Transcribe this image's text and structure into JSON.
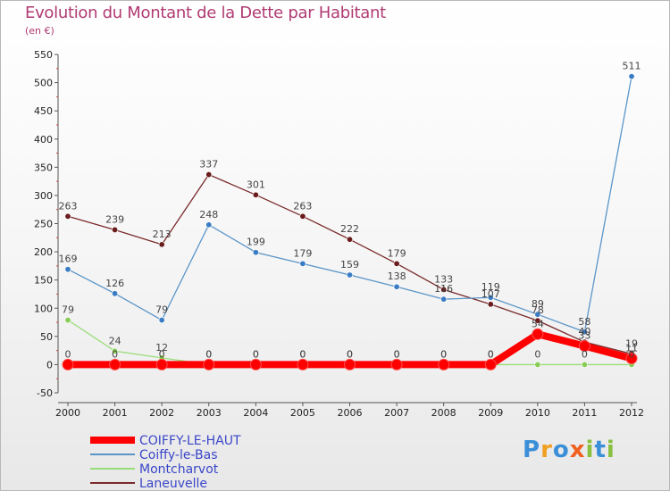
{
  "header": {
    "title": "Evolution du Montant de la Dette par Habitant",
    "unit": "(en €)"
  },
  "logo": {
    "text": "Proxiti"
  },
  "chart_data": {
    "type": "line",
    "title": "Evolution du Montant de la Dette par Habitant",
    "ylabel": "(en €)",
    "ylim": [
      -50,
      550
    ],
    "yticks": [
      -50,
      0,
      50,
      100,
      150,
      200,
      250,
      300,
      350,
      400,
      450,
      500,
      550
    ],
    "x": [
      "2000",
      "2001",
      "2002",
      "2003",
      "2004",
      "2005",
      "2006",
      "2007",
      "2008",
      "2009",
      "2010",
      "2011",
      "2012"
    ],
    "grid": false,
    "legend_position": "bottom-left",
    "series": [
      {
        "name": "COIFFY-LE-HAUT",
        "color": "#ff0000",
        "marker_fill": "#ff0000",
        "values": [
          0,
          0,
          0,
          0,
          0,
          0,
          0,
          0,
          0,
          0,
          54,
          33,
          11
        ],
        "labels": [
          "0",
          "0",
          "0",
          "0",
          "0",
          "0",
          "0",
          "0",
          "0",
          "0",
          "54",
          "33",
          "11"
        ]
      },
      {
        "name": "Coiffy-le-Bas",
        "color": "#5a95c8",
        "marker_fill": "#3a7cc4",
        "values": [
          169,
          126,
          79,
          248,
          199,
          179,
          159,
          138,
          116,
          119,
          89,
          58,
          511
        ],
        "labels": [
          "169",
          "126",
          "79",
          "248",
          "199",
          "179",
          "159",
          "138",
          "116",
          "119",
          "89",
          "58",
          "511"
        ]
      },
      {
        "name": "Montcharvot",
        "color": "#99dd77",
        "marker_fill": "#88cc55",
        "values": [
          79,
          24,
          12,
          0,
          0,
          0,
          0,
          0,
          0,
          0,
          0,
          0,
          0
        ],
        "labels": [
          "79",
          "24",
          "12",
          "0",
          "0",
          "0",
          "0",
          "0",
          "0",
          "0",
          "0",
          "0",
          "0"
        ]
      },
      {
        "name": "Laneuvelle",
        "color": "#7a2a2a",
        "marker_fill": "#6a1c1c",
        "values": [
          263,
          239,
          213,
          337,
          301,
          263,
          222,
          179,
          133,
          107,
          78,
          40,
          19
        ],
        "labels": [
          "263",
          "239",
          "213",
          "337",
          "301",
          "263",
          "222",
          "179",
          "133",
          "107",
          "78",
          "40",
          "19"
        ]
      }
    ]
  }
}
